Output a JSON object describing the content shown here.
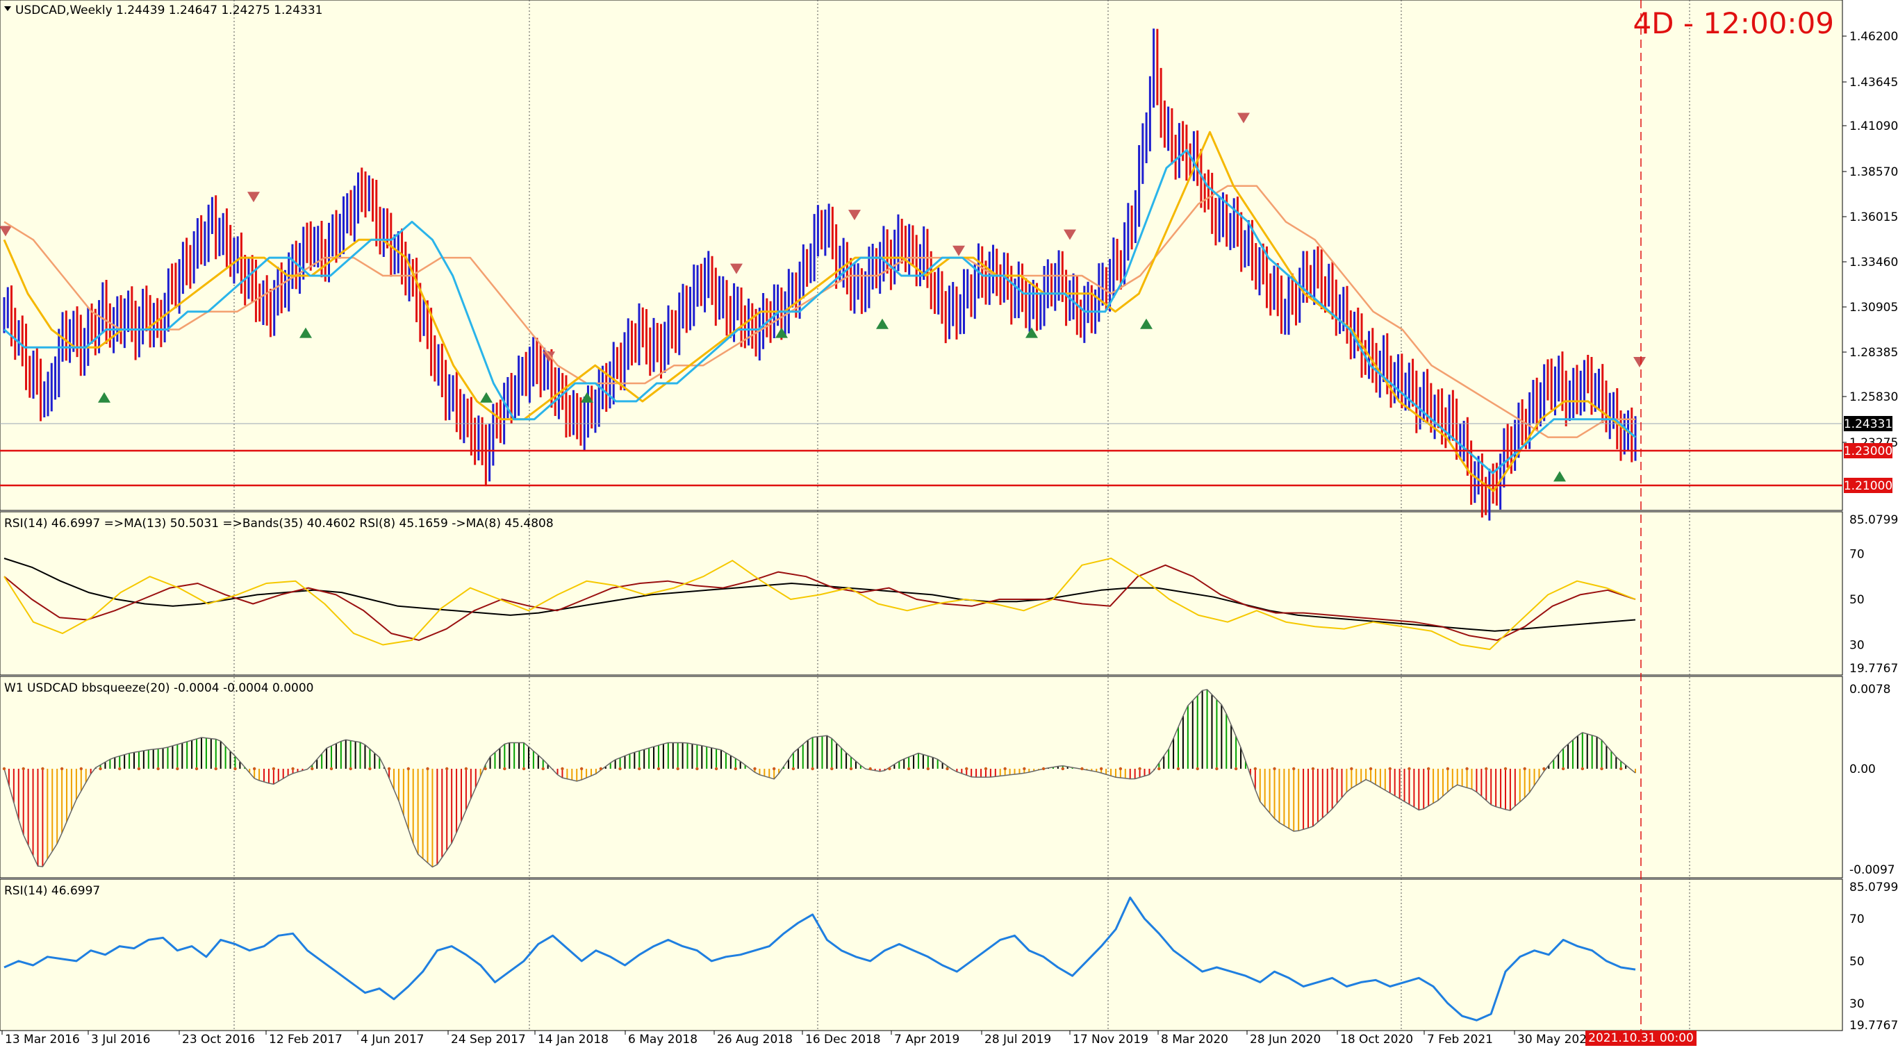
{
  "colors": {
    "background": "#ffffe6",
    "bull_bar": "#1e1ed0",
    "bear_bar": "#e01010",
    "ma_fast": "#2ab4ea",
    "ma_mid": "#f5b800",
    "ma_slow": "#f3a070",
    "level_line": "#e01010",
    "countdown": "#e01010",
    "rsi_blue": "#1f7fe0",
    "bars_up": "#00a000",
    "bars_down": "#e01010",
    "bars_orange": "#f0a000"
  },
  "header": {
    "symbol_title": "USDCAD,Weekly  1.24439 1.24647 1.24275 1.24331",
    "countdown": "4D - 12:00:09"
  },
  "chart_data": [
    {
      "type": "bar",
      "title": "USDCAD,Weekly",
      "ohlc_last": {
        "open": 1.24439,
        "high": 1.24647,
        "low": 1.24275,
        "close": 1.24331
      },
      "ylim": [
        1.205,
        1.472
      ],
      "y_ticks": [
        "1.46200",
        "1.43645",
        "1.41090",
        "1.38570",
        "1.36015",
        "1.33460",
        "1.30905",
        "1.28385",
        "1.25830",
        "1.23275"
      ],
      "current_price_label": "1.24331",
      "level_labels": [
        "1.23000",
        "1.21000"
      ],
      "levels": [
        1.23,
        1.21
      ],
      "x_dates": [
        "13 Mar 2016",
        "3 Jul 2016",
        "23 Oct 2016",
        "12 Feb 2017",
        "4 Jun 2017",
        "24 Sep 2017",
        "14 Jan 2018",
        "6 May 2018",
        "26 Aug 2018",
        "16 Dec 2018",
        "7 Apr 2019",
        "28 Jul 2019",
        "17 Nov 2019",
        "8 Mar 2020",
        "28 Jun 2020",
        "18 Oct 2020",
        "7 Feb 2021",
        "30 May 202"
      ],
      "current_time_label": "2021.10.31 00:00",
      "close_series": [
        1.31,
        1.3,
        1.28,
        1.27,
        1.26,
        1.29,
        1.3,
        1.29,
        1.3,
        1.31,
        1.3,
        1.31,
        1.3,
        1.31,
        1.3,
        1.32,
        1.33,
        1.34,
        1.35,
        1.36,
        1.35,
        1.34,
        1.33,
        1.32,
        1.31,
        1.32,
        1.33,
        1.34,
        1.35,
        1.34,
        1.35,
        1.36,
        1.37,
        1.38,
        1.36,
        1.35,
        1.34,
        1.33,
        1.31,
        1.29,
        1.27,
        1.26,
        1.25,
        1.24,
        1.23,
        1.25,
        1.26,
        1.27,
        1.28,
        1.28,
        1.27,
        1.26,
        1.25,
        1.25,
        1.26,
        1.27,
        1.28,
        1.29,
        1.3,
        1.29,
        1.29,
        1.3,
        1.31,
        1.32,
        1.33,
        1.32,
        1.31,
        1.31,
        1.3,
        1.3,
        1.31,
        1.31,
        1.32,
        1.33,
        1.35,
        1.36,
        1.34,
        1.33,
        1.32,
        1.33,
        1.34,
        1.34,
        1.35,
        1.34,
        1.34,
        1.32,
        1.31,
        1.31,
        1.32,
        1.33,
        1.33,
        1.33,
        1.32,
        1.32,
        1.31,
        1.32,
        1.33,
        1.32,
        1.31,
        1.31,
        1.32,
        1.33,
        1.34,
        1.36,
        1.4,
        1.45,
        1.41,
        1.4,
        1.4,
        1.39,
        1.37,
        1.36,
        1.36,
        1.35,
        1.34,
        1.33,
        1.32,
        1.31,
        1.32,
        1.33,
        1.33,
        1.32,
        1.31,
        1.3,
        1.29,
        1.28,
        1.28,
        1.27,
        1.27,
        1.26,
        1.26,
        1.25,
        1.25,
        1.24,
        1.22,
        1.21,
        1.21,
        1.23,
        1.24,
        1.25,
        1.26,
        1.27,
        1.27,
        1.26,
        1.27,
        1.27,
        1.26,
        1.25,
        1.24,
        1.243
      ],
      "ma_fast": [
        1.3,
        1.29,
        1.29,
        1.29,
        1.29,
        1.3,
        1.3,
        1.3,
        1.3,
        1.31,
        1.31,
        1.32,
        1.33,
        1.34,
        1.34,
        1.33,
        1.33,
        1.34,
        1.35,
        1.35,
        1.36,
        1.35,
        1.33,
        1.3,
        1.27,
        1.25,
        1.25,
        1.26,
        1.27,
        1.27,
        1.26,
        1.26,
        1.27,
        1.27,
        1.28,
        1.29,
        1.3,
        1.3,
        1.31,
        1.31,
        1.32,
        1.33,
        1.34,
        1.34,
        1.33,
        1.33,
        1.34,
        1.34,
        1.33,
        1.33,
        1.32,
        1.32,
        1.32,
        1.31,
        1.31,
        1.33,
        1.36,
        1.39,
        1.4,
        1.38,
        1.37,
        1.36,
        1.34,
        1.33,
        1.32,
        1.31,
        1.3,
        1.28,
        1.27,
        1.26,
        1.25,
        1.24,
        1.23,
        1.22,
        1.23,
        1.24,
        1.25,
        1.25,
        1.25,
        1.25,
        1.24
      ],
      "ma_mid": [
        1.35,
        1.32,
        1.3,
        1.29,
        1.29,
        1.3,
        1.3,
        1.31,
        1.32,
        1.33,
        1.34,
        1.34,
        1.33,
        1.33,
        1.34,
        1.35,
        1.35,
        1.34,
        1.31,
        1.28,
        1.26,
        1.25,
        1.25,
        1.26,
        1.27,
        1.28,
        1.27,
        1.26,
        1.27,
        1.28,
        1.29,
        1.3,
        1.31,
        1.31,
        1.32,
        1.33,
        1.34,
        1.34,
        1.34,
        1.33,
        1.34,
        1.34,
        1.33,
        1.33,
        1.32,
        1.32,
        1.32,
        1.31,
        1.32,
        1.35,
        1.38,
        1.41,
        1.38,
        1.36,
        1.34,
        1.32,
        1.31,
        1.3,
        1.28,
        1.26,
        1.25,
        1.24,
        1.22,
        1.21,
        1.23,
        1.25,
        1.26,
        1.26,
        1.25,
        1.24
      ],
      "ma_slow": [
        1.36,
        1.35,
        1.33,
        1.31,
        1.3,
        1.3,
        1.3,
        1.31,
        1.31,
        1.32,
        1.33,
        1.34,
        1.34,
        1.33,
        1.33,
        1.34,
        1.34,
        1.32,
        1.3,
        1.28,
        1.27,
        1.27,
        1.27,
        1.28,
        1.28,
        1.29,
        1.3,
        1.31,
        1.32,
        1.33,
        1.33,
        1.34,
        1.34,
        1.34,
        1.33,
        1.33,
        1.33,
        1.33,
        1.32,
        1.33,
        1.35,
        1.37,
        1.38,
        1.38,
        1.36,
        1.35,
        1.33,
        1.31,
        1.3,
        1.28,
        1.27,
        1.26,
        1.25,
        1.24,
        1.24,
        1.25,
        1.25
      ]
    },
    {
      "type": "line",
      "title": "RSI(14) 46.6997  =>MA(13) 50.5031  =>Bands(35) 40.4602  RSI(8) 45.1659  ->MA(8) 45.4808",
      "ylim": [
        19.7767,
        85.0799
      ],
      "y_ticks": [
        "85.0799",
        "70",
        "50",
        "30",
        "19.7767"
      ],
      "series": [
        {
          "values": [
            68,
            64,
            58,
            53,
            50,
            48,
            47,
            48,
            50,
            52,
            53,
            54,
            53,
            50,
            47,
            46,
            45,
            44,
            43,
            44,
            46,
            48,
            50,
            52,
            53,
            54,
            55,
            56,
            57,
            56,
            55,
            54,
            53,
            52,
            50,
            49,
            49,
            50,
            52,
            54,
            55,
            55,
            53,
            51,
            48,
            45,
            43,
            42,
            41,
            40,
            39,
            38,
            37,
            36,
            37,
            38,
            39,
            40,
            41
          ]
        },
        {
          "values": [
            60,
            50,
            42,
            41,
            45,
            50,
            55,
            57,
            52,
            48,
            52,
            55,
            52,
            45,
            35,
            32,
            37,
            45,
            50,
            47,
            45,
            50,
            55,
            57,
            58,
            56,
            55,
            58,
            62,
            60,
            55,
            53,
            55,
            50,
            48,
            47,
            50,
            50,
            50,
            48,
            47,
            60,
            65,
            60,
            52,
            47,
            44,
            44,
            43,
            42,
            41,
            40,
            38,
            34,
            32,
            38,
            47,
            52,
            54,
            50
          ]
        },
        {
          "values": [
            60,
            40,
            35,
            42,
            53,
            60,
            55,
            48,
            52,
            57,
            58,
            48,
            35,
            30,
            32,
            46,
            55,
            50,
            45,
            52,
            58,
            56,
            52,
            55,
            60,
            67,
            58,
            50,
            52,
            55,
            48,
            45,
            48,
            50,
            48,
            45,
            50,
            65,
            68,
            60,
            50,
            43,
            40,
            45,
            40,
            38,
            37,
            40,
            38,
            36,
            30,
            28,
            40,
            52,
            58,
            55,
            50
          ]
        }
      ]
    },
    {
      "type": "bar",
      "title": "W1 USDCAD bbsqueeze(20) -0.0004 -0.0004 0.0000",
      "ylim": [
        -0.0097,
        0.0078
      ],
      "y_ticks": [
        "0.0078",
        "0.00",
        "-0.0097"
      ],
      "values": [
        0,
        -0.006,
        -0.0097,
        -0.007,
        -0.003,
        0,
        0.001,
        0.0015,
        0.0018,
        0.002,
        0.0025,
        0.003,
        0.0028,
        0.001,
        -0.001,
        -0.0015,
        -0.0005,
        0,
        0.002,
        0.0028,
        0.0025,
        0.001,
        -0.003,
        -0.008,
        -0.0095,
        -0.007,
        -0.003,
        0.001,
        0.0025,
        0.0025,
        0.001,
        -0.0008,
        -0.0012,
        -0.0005,
        0.0008,
        0.0015,
        0.002,
        0.0025,
        0.0025,
        0.0022,
        0.0018,
        0.0008,
        -0.0005,
        -0.001,
        0.0015,
        0.003,
        0.0032,
        0.0015,
        0,
        -0.0003,
        0.0008,
        0.0015,
        0.001,
        -0.0002,
        -0.0008,
        -0.0008,
        -0.0006,
        -0.0004,
        0,
        0.0003,
        0,
        -0.0003,
        -0.0008,
        -0.001,
        -0.0005,
        0.002,
        0.006,
        0.0078,
        0.006,
        0.002,
        -0.003,
        -0.005,
        -0.006,
        -0.0055,
        -0.004,
        -0.002,
        -0.001,
        -0.002,
        -0.003,
        -0.004,
        -0.003,
        -0.0015,
        -0.002,
        -0.0035,
        -0.004,
        -0.0025,
        0,
        0.002,
        0.0035,
        0.003,
        0.001,
        -0.0004
      ]
    },
    {
      "type": "line",
      "title": "RSI(14) 46.6997",
      "ylim": [
        19.7767,
        85.0799
      ],
      "y_ticks": [
        "85.0799",
        "70",
        "50",
        "30",
        "19.7767"
      ],
      "values": [
        47,
        50,
        48,
        52,
        51,
        50,
        55,
        53,
        57,
        56,
        60,
        61,
        55,
        57,
        52,
        60,
        58,
        55,
        57,
        62,
        63,
        55,
        50,
        45,
        40,
        35,
        37,
        32,
        38,
        45,
        55,
        57,
        53,
        48,
        40,
        45,
        50,
        58,
        62,
        56,
        50,
        55,
        52,
        48,
        53,
        57,
        60,
        57,
        55,
        50,
        52,
        53,
        55,
        57,
        63,
        68,
        72,
        60,
        55,
        52,
        50,
        55,
        58,
        55,
        52,
        48,
        45,
        50,
        55,
        60,
        62,
        55,
        52,
        47,
        43,
        50,
        57,
        65,
        80,
        70,
        63,
        55,
        50,
        45,
        47,
        45,
        43,
        40,
        45,
        42,
        38,
        40,
        42,
        38,
        40,
        41,
        38,
        40,
        42,
        38,
        30,
        24,
        22,
        25,
        45,
        52,
        55,
        53,
        60,
        57,
        55,
        50,
        47,
        46
      ]
    }
  ]
}
